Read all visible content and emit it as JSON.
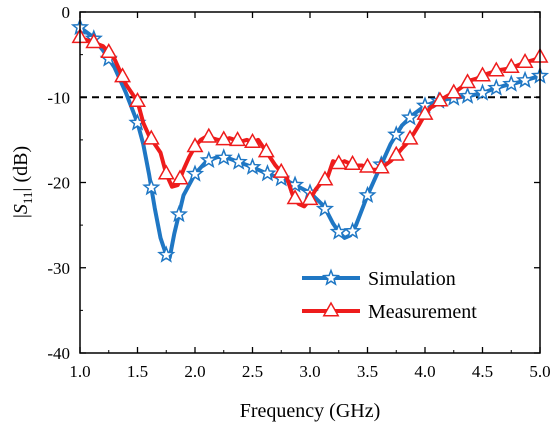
{
  "chart_data": {
    "type": "line",
    "title": "",
    "xlabel": "Frequency (GHz)",
    "ylabel": {
      "prefix": "|",
      "var": "S",
      "sub": "11",
      "suffix": "| (dB)"
    },
    "xlim": [
      1.0,
      5.0
    ],
    "ylim": [
      -40,
      0
    ],
    "xticks": [
      "1.0",
      "1.5",
      "2.0",
      "2.5",
      "3.0",
      "3.5",
      "4.0",
      "4.5",
      "5.0"
    ],
    "yticks": [
      "0",
      "-10",
      "-20",
      "-30",
      "-40"
    ],
    "grid": false,
    "legend": "bottom-right",
    "reference_line": {
      "y": -10,
      "style": "dashed",
      "color": "#000000"
    },
    "series": [
      {
        "name": "Simulation",
        "color": "#1f77c4",
        "marker": "star",
        "x": [
          1.0,
          1.1,
          1.2,
          1.3,
          1.4,
          1.5,
          1.55,
          1.6,
          1.65,
          1.7,
          1.75,
          1.78,
          1.82,
          1.9,
          2.0,
          2.1,
          2.2,
          2.3,
          2.4,
          2.5,
          2.6,
          2.7,
          2.8,
          2.9,
          3.0,
          3.1,
          3.15,
          3.2,
          3.25,
          3.3,
          3.35,
          3.4,
          3.5,
          3.6,
          3.7,
          3.8,
          3.9,
          4.0,
          4.1,
          4.2,
          4.3,
          4.4,
          4.5,
          4.6,
          4.7,
          4.8,
          4.9,
          5.0
        ],
        "y": [
          -1.8,
          -2.8,
          -4.5,
          -6.5,
          -9.5,
          -13.0,
          -15.5,
          -19.0,
          -23.0,
          -26.5,
          -28.5,
          -28.8,
          -26.0,
          -21.5,
          -19.0,
          -17.5,
          -17.0,
          -17.2,
          -17.7,
          -18.2,
          -18.8,
          -19.3,
          -19.8,
          -20.5,
          -21.2,
          -22.5,
          -23.5,
          -24.8,
          -25.8,
          -26.5,
          -26.2,
          -25.0,
          -21.5,
          -18.5,
          -15.5,
          -13.3,
          -12.0,
          -11.0,
          -10.5,
          -10.2,
          -10.0,
          -9.8,
          -9.5,
          -9.0,
          -8.6,
          -8.3,
          -7.9,
          -7.5
        ],
        "markers_x": [
          1.0,
          1.12,
          1.25,
          1.5,
          1.62,
          1.75,
          1.86,
          2.0,
          2.12,
          2.25,
          2.38,
          2.5,
          2.63,
          2.75,
          2.87,
          3.0,
          3.13,
          3.25,
          3.37,
          3.5,
          3.62,
          3.75,
          3.87,
          4.0,
          4.12,
          4.25,
          4.37,
          4.5,
          4.62,
          4.75,
          4.87,
          5.0
        ]
      },
      {
        "name": "Measurement",
        "color": "#ee1c1c",
        "marker": "triangle",
        "x": [
          1.0,
          1.1,
          1.2,
          1.3,
          1.35,
          1.4,
          1.5,
          1.55,
          1.6,
          1.65,
          1.7,
          1.75,
          1.8,
          1.85,
          1.9,
          1.95,
          2.0,
          2.05,
          2.1,
          2.15,
          2.2,
          2.25,
          2.3,
          2.35,
          2.4,
          2.45,
          2.5,
          2.55,
          2.6,
          2.65,
          2.7,
          2.75,
          2.8,
          2.85,
          2.9,
          2.95,
          3.0,
          3.05,
          3.1,
          3.15,
          3.2,
          3.25,
          3.3,
          3.35,
          3.4,
          3.45,
          3.5,
          3.55,
          3.6,
          3.65,
          3.7,
          3.75,
          3.8,
          3.85,
          3.9,
          3.95,
          4.0,
          4.05,
          4.1,
          4.15,
          4.2,
          4.25,
          4.3,
          4.35,
          4.4,
          4.45,
          4.5,
          4.55,
          4.6,
          4.65,
          4.7,
          4.75,
          4.8,
          4.85,
          4.9,
          4.95,
          5.0
        ],
        "y": [
          -3.0,
          -3.5,
          -4.0,
          -5.5,
          -7.0,
          -8.5,
          -10.5,
          -13.0,
          -14.5,
          -15.5,
          -16.5,
          -19.0,
          -20.5,
          -20.3,
          -18.5,
          -17.0,
          -15.8,
          -15.0,
          -14.6,
          -14.8,
          -15.0,
          -15.0,
          -14.8,
          -15.0,
          -15.2,
          -15.0,
          -15.3,
          -15.0,
          -16.0,
          -17.0,
          -18.0,
          -18.8,
          -19.5,
          -21.5,
          -22.5,
          -22.8,
          -22.0,
          -20.8,
          -20.0,
          -19.5,
          -17.5,
          -17.8,
          -17.5,
          -17.8,
          -18.0,
          -18.0,
          -18.2,
          -18.5,
          -18.5,
          -18.0,
          -17.5,
          -16.8,
          -16.0,
          -15.3,
          -14.3,
          -13.2,
          -12.0,
          -11.2,
          -10.8,
          -10.2,
          -9.8,
          -9.5,
          -9.0,
          -8.5,
          -8.0,
          -7.8,
          -7.5,
          -7.2,
          -7.0,
          -6.8,
          -6.7,
          -6.5,
          -6.3,
          -6.0,
          -5.8,
          -5.6,
          -5.3
        ],
        "markers_x": [
          1.0,
          1.12,
          1.25,
          1.37,
          1.5,
          1.62,
          1.75,
          1.87,
          2.0,
          2.12,
          2.25,
          2.37,
          2.5,
          2.62,
          2.75,
          2.87,
          3.0,
          3.13,
          3.25,
          3.37,
          3.5,
          3.62,
          3.75,
          3.87,
          4.0,
          4.13,
          4.25,
          4.37,
          4.5,
          4.62,
          4.75,
          4.87,
          5.0
        ]
      }
    ]
  }
}
